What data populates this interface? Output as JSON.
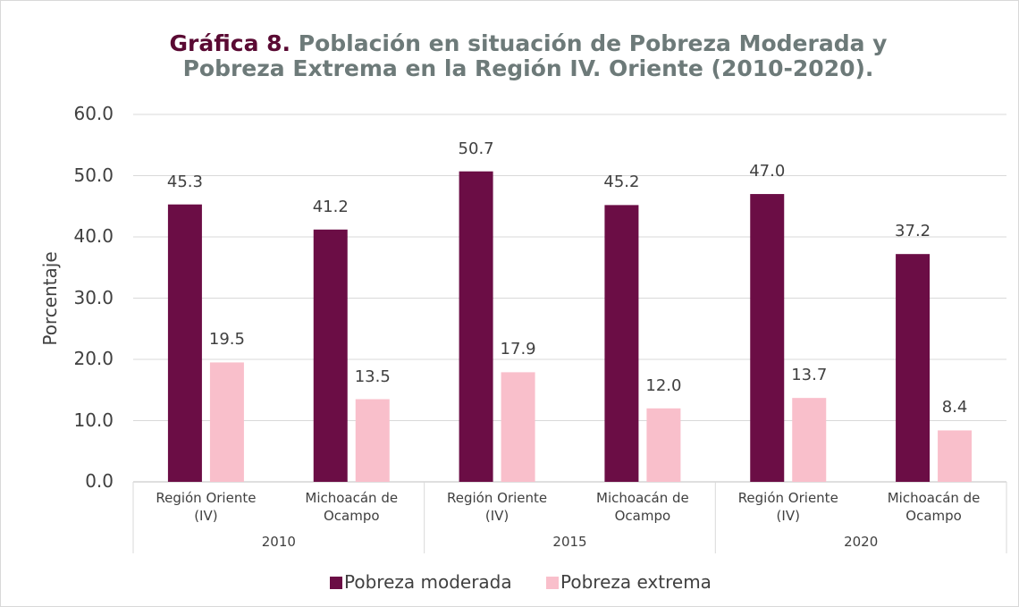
{
  "chart_data": {
    "type": "bar",
    "title": {
      "label": "Gráfica 8.",
      "text": "Población en situación de Pobreza Moderada y Pobreza Extrema en la Región IV. Oriente (2010-2020)."
    },
    "y_label": "Porcentaje",
    "categories": [
      "Región Oriente (IV)",
      "Michoacán de Ocampo",
      "Región Oriente (IV)",
      "Michoacán de Ocampo",
      "Región Oriente (IV)",
      "Michoacán de Ocampo"
    ],
    "groups": [
      "2010",
      "2015",
      "2020"
    ],
    "series": [
      {
        "name": "Pobreza moderada",
        "color": "#6b0d45",
        "values": [
          45.3,
          41.2,
          50.7,
          45.2,
          47.0,
          37.2
        ],
        "value_labels": [
          "45.3",
          "41.2",
          "50.7",
          "45.2",
          "47.0",
          "37.2"
        ]
      },
      {
        "name": "Pobreza extrema",
        "color": "#f9bfcb",
        "values": [
          19.5,
          13.5,
          17.9,
          12.0,
          13.7,
          8.4
        ],
        "value_labels": [
          "19.5",
          "13.5",
          "17.9",
          "12.0",
          "13.7",
          "8.4"
        ]
      }
    ],
    "ylim": [
      0,
      60
    ],
    "yticks": [
      {
        "value": 0,
        "label": "0.0"
      },
      {
        "value": 10,
        "label": "10.0"
      },
      {
        "value": 20,
        "label": "20.0"
      },
      {
        "value": 30,
        "label": "30.0"
      },
      {
        "value": 40,
        "label": "40.0"
      },
      {
        "value": 50,
        "label": "50.0"
      },
      {
        "value": 60,
        "label": "60.0"
      }
    ],
    "grid": true,
    "legend": "bottom"
  }
}
